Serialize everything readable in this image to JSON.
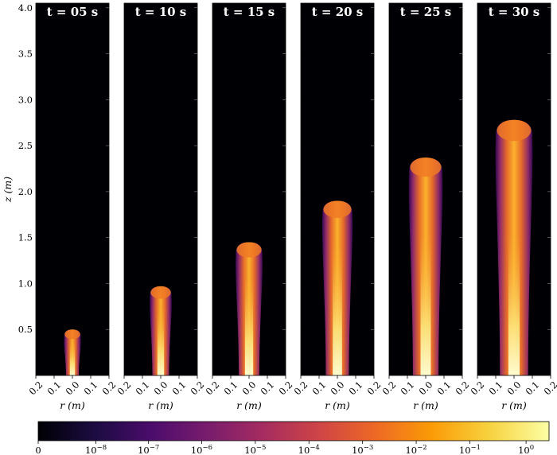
{
  "chart_data": {
    "type": "heatmap",
    "title": "",
    "xlabel": "r (m)",
    "ylabel": "z (m)",
    "xlim": [
      -0.2,
      0.2
    ],
    "ylim": [
      0,
      4.05
    ],
    "x_tick_labels": [
      "0.2",
      "0.1",
      "0.0",
      "0.1",
      "0.2"
    ],
    "y_ticks": [
      0.5,
      1.0,
      1.5,
      2.0,
      2.5,
      3.0,
      3.5,
      4.0
    ],
    "y_tick_labels": [
      "0.5",
      "1.0",
      "1.5",
      "2.0",
      "2.5",
      "3.0",
      "3.5",
      "4.0"
    ],
    "panels": [
      {
        "title": "t = 05 s",
        "plume_height_m": 0.5,
        "plume_half_width_m": 0.05
      },
      {
        "title": "t = 10 s",
        "plume_height_m": 0.97,
        "plume_half_width_m": 0.065
      },
      {
        "title": "t = 15 s",
        "plume_height_m": 1.45,
        "plume_half_width_m": 0.08
      },
      {
        "title": "t = 20 s",
        "plume_height_m": 1.9,
        "plume_half_width_m": 0.09
      },
      {
        "title": "t = 25 s",
        "plume_height_m": 2.37,
        "plume_half_width_m": 0.1
      },
      {
        "title": "t = 30 s",
        "plume_height_m": 2.78,
        "plume_half_width_m": 0.11
      }
    ],
    "colorbar": {
      "scale": "log",
      "colormap": "inferno",
      "tick_labels": [
        "0",
        "10",
        "10",
        "10",
        "10",
        "10",
        "10",
        "10",
        "10",
        "10"
      ],
      "tick_exponents": [
        "",
        "−8",
        "−7",
        "−6",
        "−5",
        "−4",
        "−3",
        "−2",
        "−1",
        "0"
      ],
      "colors": [
        "#000004",
        "#1b0c41",
        "#4a0c6b",
        "#781c6d",
        "#a52c60",
        "#cf4446",
        "#ed6925",
        "#fb9b06",
        "#f7d13d",
        "#fcffa4"
      ]
    }
  }
}
